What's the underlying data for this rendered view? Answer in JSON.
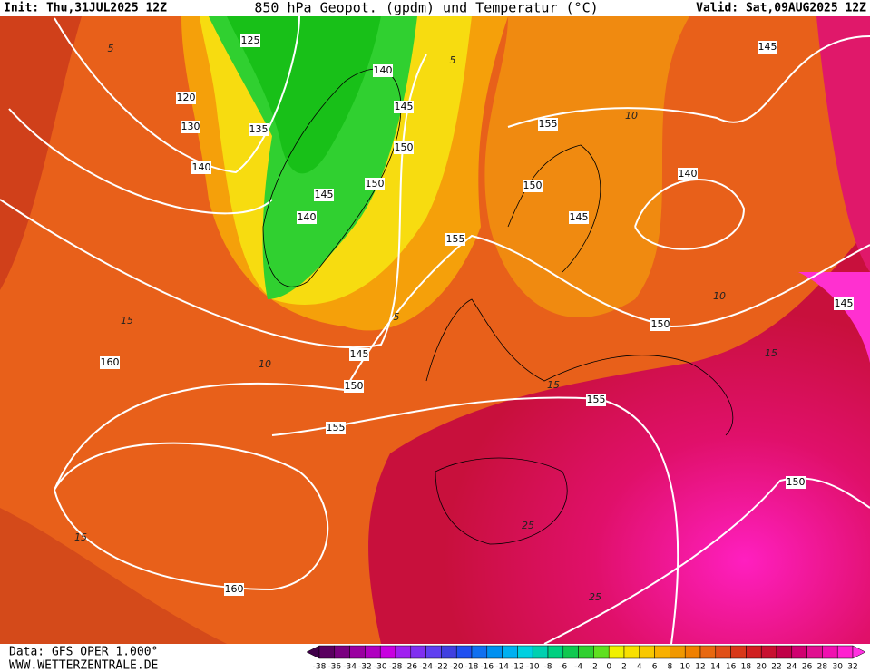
{
  "header": {
    "init": "Init: Thu,31JUL2025 12Z",
    "title": "850 hPa Geopot. (gpdm) und Temperatur (°C)",
    "valid": "Valid: Sat,09AUG2025 12Z"
  },
  "footer": {
    "data": "Data: GFS OPER 1.000°",
    "site": "WWW.WETTERZENTRALE.DE"
  },
  "colorbar": {
    "labels": [
      -38,
      -36,
      -34,
      -32,
      -30,
      -28,
      -26,
      -24,
      -22,
      -20,
      -18,
      -16,
      -14,
      -12,
      -10,
      -8,
      -6,
      -4,
      -2,
      0,
      2,
      4,
      6,
      8,
      10,
      12,
      14,
      16,
      18,
      20,
      22,
      24,
      26,
      28,
      30,
      32
    ]
  },
  "map": {
    "height_labels": [
      125,
      120,
      130,
      135,
      140,
      140,
      145,
      150,
      150,
      145,
      140,
      155,
      155,
      150,
      145,
      140,
      145,
      145,
      150,
      145,
      150,
      155,
      160,
      155,
      150,
      160
    ],
    "temperature_labels": [
      5,
      5,
      10,
      15,
      10,
      5,
      10,
      15,
      15,
      15,
      25,
      25
    ]
  }
}
